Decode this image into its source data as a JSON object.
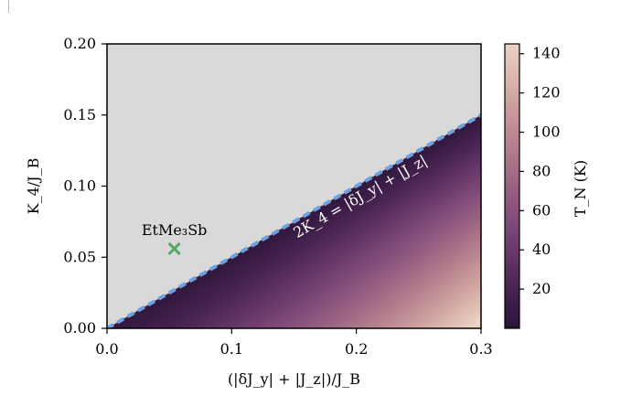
{
  "chart_data": {
    "type": "heatmap",
    "xlabel": "(|δJ_y| + |J_z|)/J_B",
    "ylabel": "K_4/J_B",
    "xlim": [
      0.0,
      0.3
    ],
    "ylim": [
      0.0,
      0.2
    ],
    "x_ticks": [
      "0.0",
      "0.1",
      "0.2",
      "0.3"
    ],
    "x_tick_values": [
      0.0,
      0.1,
      0.2,
      0.3
    ],
    "y_ticks": [
      "0.00",
      "0.05",
      "0.10",
      "0.15",
      "0.20"
    ],
    "y_tick_values": [
      0.0,
      0.05,
      0.1,
      0.15,
      0.2
    ],
    "boundary_line": {
      "label": "2K_4 = |δJ_y| + |J_z|",
      "slope": 0.5,
      "color": "#6fa0e0",
      "style": "dashed"
    },
    "disordered_region_color": "#d9d9d9",
    "point": {
      "label": "EtMe₃Sb",
      "x": 0.054,
      "y": 0.056,
      "color": "#55a868",
      "marker": "x"
    },
    "colorbar": {
      "label": "T_N (K)",
      "range": [
        0,
        145
      ],
      "ticks": [
        "20",
        "40",
        "60",
        "80",
        "100",
        "120",
        "140"
      ],
      "tick_values": [
        20,
        40,
        60,
        80,
        100,
        120,
        140
      ],
      "colormap": "pink-to-dark-purple"
    },
    "colormap_stops": [
      "#2b1438",
      "#44224f",
      "#633566",
      "#804b79",
      "#9a6282",
      "#b27c8c",
      "#c79799",
      "#dab5ab",
      "#ead3c5"
    ]
  }
}
